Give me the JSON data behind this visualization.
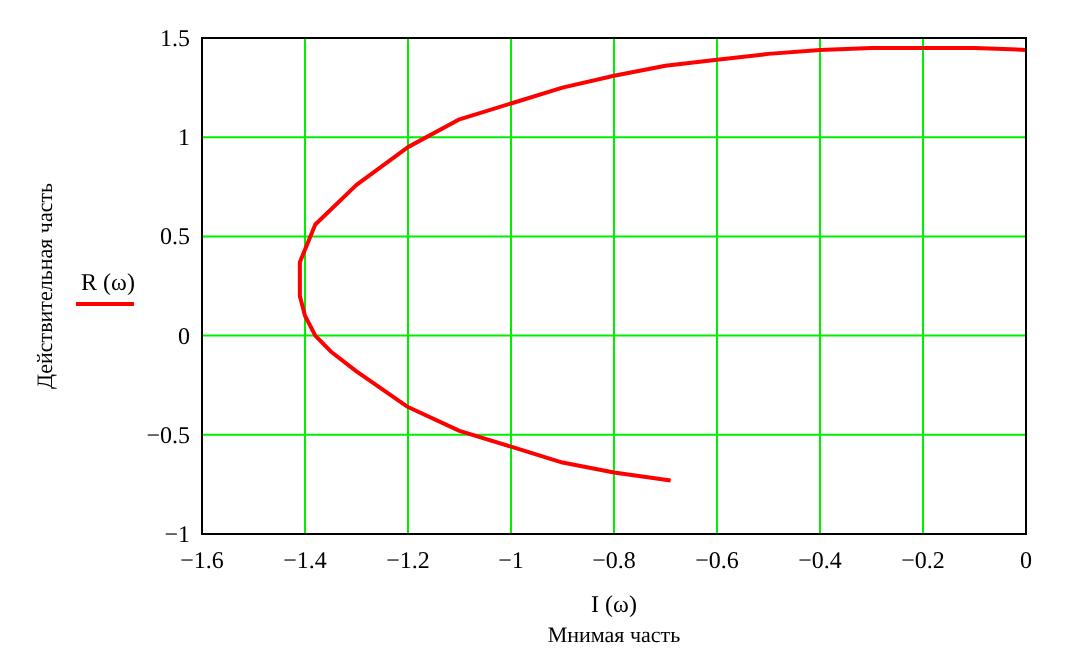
{
  "chart_data": {
    "type": "line",
    "xlabel": "I (ω)",
    "ylabel": "Действительная часть",
    "annotations": [
      "Мнимая часть"
    ],
    "series": [
      {
        "name": "R (ω)",
        "color": "#ff0000",
        "x": [
          -0.69,
          -0.8,
          -0.9,
          -1.0,
          -1.1,
          -1.2,
          -1.3,
          -1.35,
          -1.38,
          -1.4,
          -1.41,
          -1.41,
          -1.38,
          -1.3,
          -1.2,
          -1.1,
          -1.0,
          -0.9,
          -0.8,
          -0.7,
          -0.6,
          -0.5,
          -0.4,
          -0.3,
          -0.2,
          -0.1,
          0
        ],
        "values": [
          -0.73,
          -0.69,
          -0.64,
          -0.56,
          -0.48,
          -0.36,
          -0.18,
          -0.08,
          0.0,
          0.1,
          0.2,
          0.37,
          0.56,
          0.76,
          0.95,
          1.09,
          1.17,
          1.25,
          1.31,
          1.36,
          1.39,
          1.42,
          1.44,
          1.45,
          1.45,
          1.45,
          1.44
        ]
      }
    ],
    "xlim": [
      -1.6,
      0
    ],
    "xticks": [
      -1.6,
      -1.4,
      -1.2,
      -1,
      -0.8,
      -0.6,
      -0.4,
      -0.2,
      0
    ],
    "ylim": [
      -1,
      1.5
    ],
    "yticks": [
      -1,
      -0.5,
      0,
      0.5,
      1,
      1.5
    ],
    "grid": true,
    "legend": "left",
    "marker": "none",
    "line_style": "solid"
  }
}
